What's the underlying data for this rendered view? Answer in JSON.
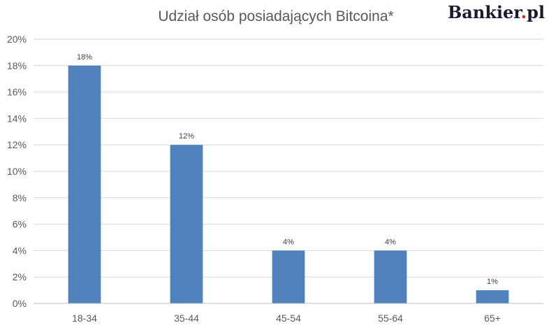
{
  "logo": "Bankier.pl",
  "chart_data": {
    "type": "bar",
    "title": "Udział osób posiadających Bitcoina*",
    "xlabel": "",
    "ylabel": "",
    "categories": [
      "18-34",
      "35-44",
      "45-54",
      "55-64",
      "65+"
    ],
    "values": [
      18,
      12,
      4,
      4,
      1
    ],
    "data_labels": [
      "18%",
      "12%",
      "4%",
      "4%",
      "1%"
    ],
    "ylim": [
      0,
      20
    ],
    "yticks": [
      "0%",
      "2%",
      "4%",
      "6%",
      "8%",
      "10%",
      "12%",
      "14%",
      "16%",
      "18%",
      "20%"
    ],
    "grid": true,
    "legend": "none",
    "bar_color": "#4f81bd"
  }
}
